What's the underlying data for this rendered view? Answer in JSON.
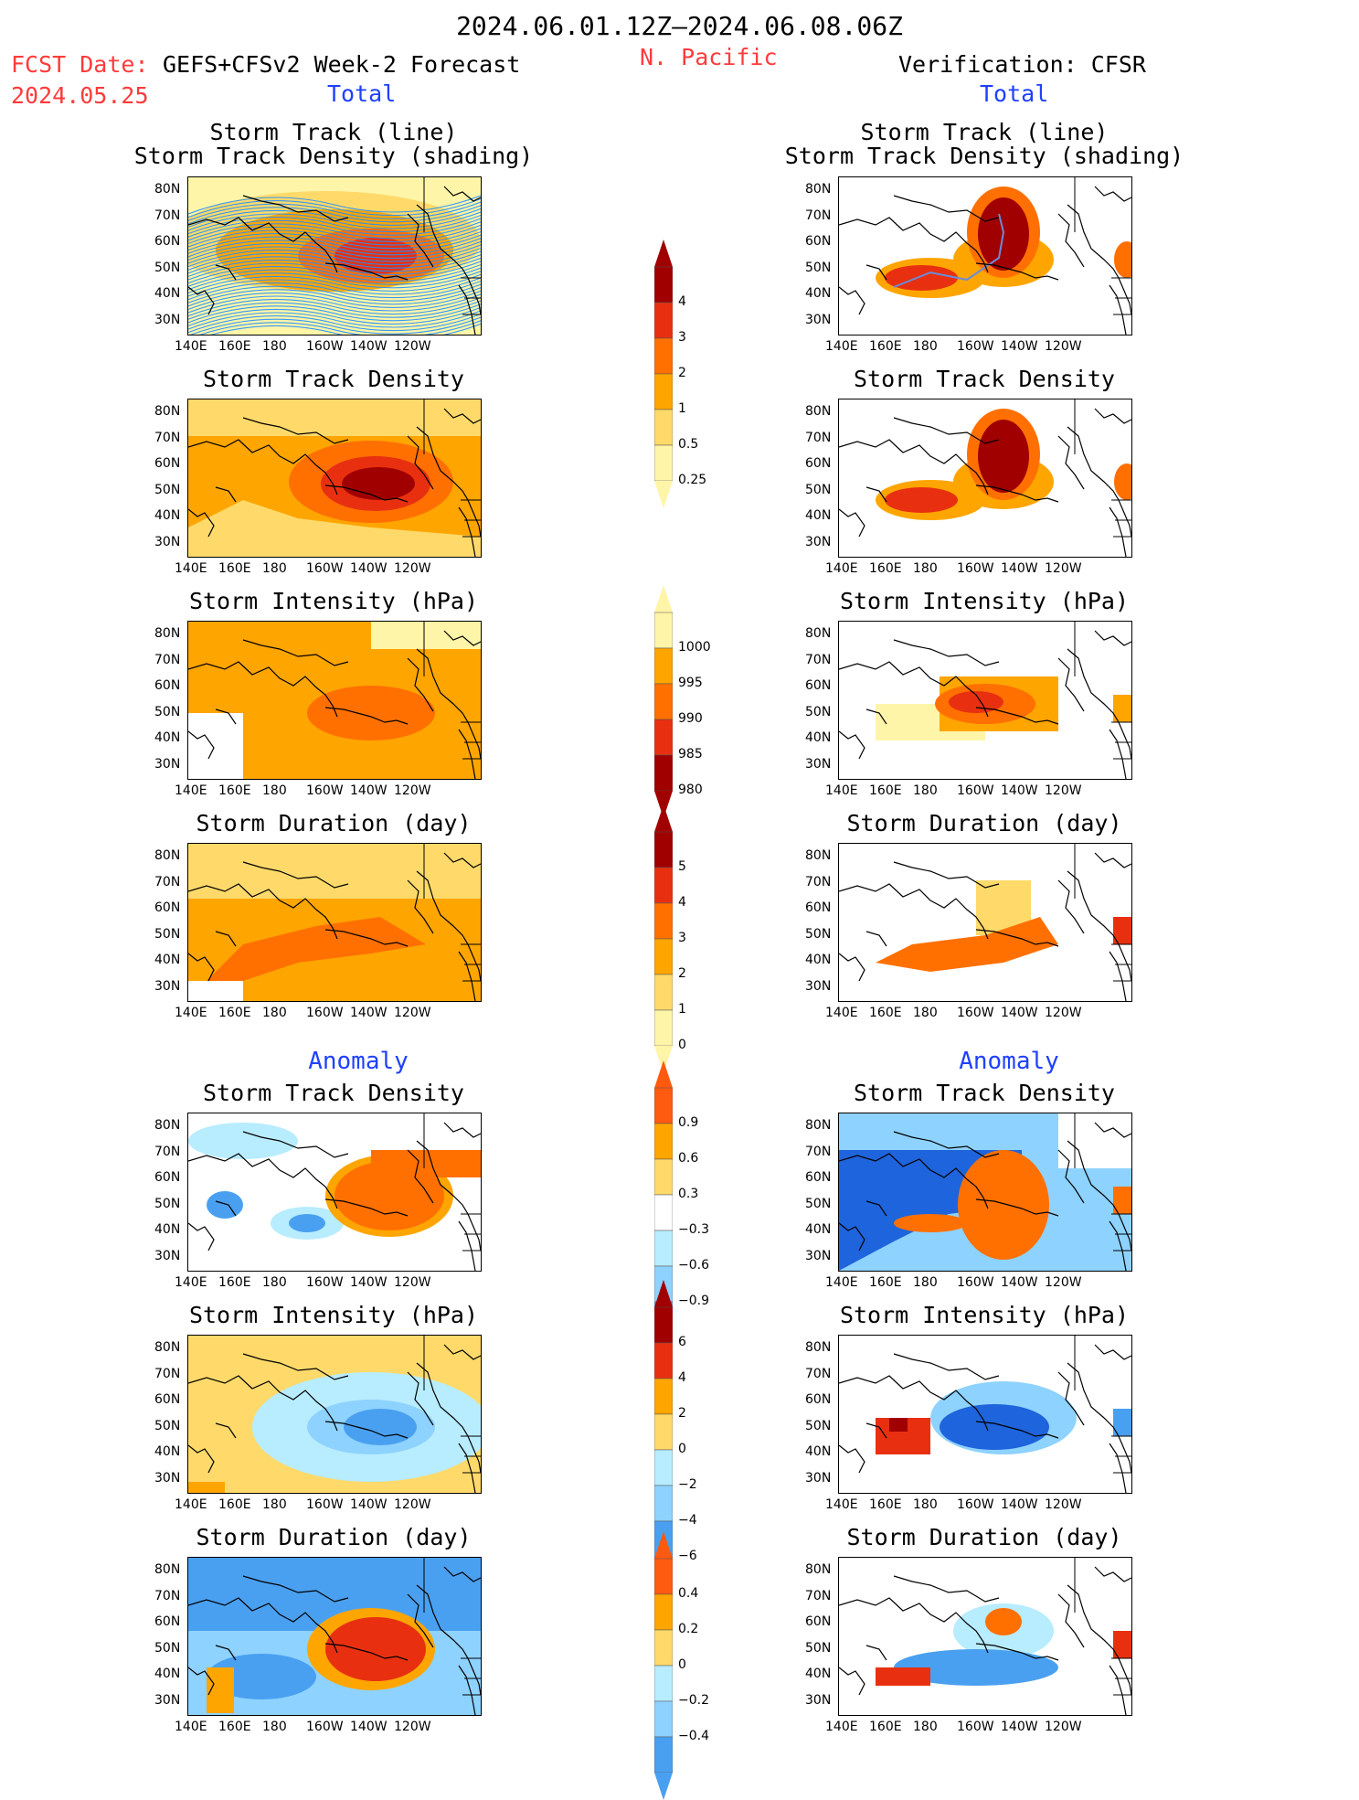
{
  "header": {
    "period": "2024.06.01.12Z–2024.06.08.06Z",
    "region": "N. Pacific",
    "fcst_label": "FCST Date:",
    "fcst_date": "2024.05.25",
    "model": "GEFS+CFSv2 Week-2 Forecast",
    "verification": "Verification: CFSR"
  },
  "sections": {
    "total": "Total",
    "anomaly": "Anomaly"
  },
  "panel_titles": {
    "track_line": "Storm Track (line)",
    "track_shading": "Storm Track Density (shading)",
    "density": "Storm Track Density",
    "intensity": "Storm Intensity (hPa)",
    "duration": "Storm Duration (day)"
  },
  "axes": {
    "y_ticks": [
      "80N",
      "70N",
      "60N",
      "50N",
      "40N",
      "30N"
    ],
    "x_ticks": [
      "140E",
      "160E",
      "180",
      "160W",
      "140W",
      "120W"
    ]
  },
  "colorbars": {
    "density": [
      "4",
      "3",
      "2",
      "1",
      "0.5",
      "0.25"
    ],
    "intensity": [
      "1000",
      "995",
      "990",
      "985",
      "980"
    ],
    "duration": [
      "5",
      "4",
      "3",
      "2",
      "1",
      "0"
    ],
    "density_anom": [
      "0.9",
      "0.6",
      "0.3",
      "−0.3",
      "−0.6",
      "−0.9"
    ],
    "intensity_anom": [
      "6",
      "4",
      "2",
      "0",
      "−2",
      "−4",
      "−6"
    ],
    "duration_anom": [
      "0.4",
      "0.2",
      "0",
      "−0.2",
      "−0.4"
    ]
  },
  "colors": {
    "lightyellow": "#fff5a8",
    "yellow": "#ffda6a",
    "orange": "#ffa500",
    "darkorange": "#ff7000",
    "red": "#e83010",
    "darkred": "#a00000",
    "lightblue": "#b8ecff",
    "blue2": "#8ed2ff",
    "blue3": "#4aa0f0",
    "blue4": "#1e64dc",
    "track_line": "#1e90ff"
  }
}
